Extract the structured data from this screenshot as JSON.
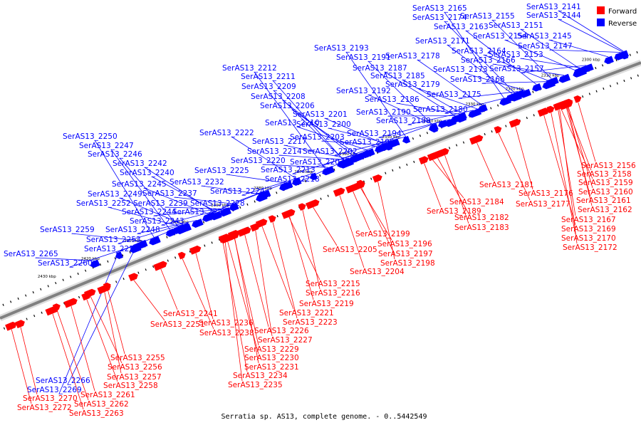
{
  "caption": "Serratia sp. AS13, complete genome. - 0..5442549",
  "legend": [
    {
      "label": "Forward",
      "color": "#ff0000"
    },
    {
      "label": "Reverse",
      "color": "#0000ff"
    }
  ],
  "colors": {
    "forward": "#ff0000",
    "reverse": "#0000ff",
    "backbone": "#808080"
  },
  "kbp_labels": [
    "2300 kbp",
    "2310 kbp",
    "2320 kbp",
    "2330 kbp",
    "2340 kbp",
    "2350 kbp",
    "2360 kbp",
    "2370 kbp",
    "2380 kbp",
    "2390 kbp",
    "2400 kbp",
    "2410 kbp",
    "2420 kbp",
    "2430 kbp"
  ],
  "reverse_genes": [
    "SerAS13_2165",
    "SerAS13_2141",
    "SerAS13_2174",
    "SerAS13_2155",
    "SerAS13_2144",
    "SerAS13_2163",
    "SerAS13_2151",
    "SerAS13_2171",
    "SerAS13_2154",
    "SerAS13_2145",
    "SerAS13_2164",
    "SerAS13_2147",
    "SerAS13_2193",
    "SerAS13_2178",
    "SerAS13_2166",
    "SerAS13_2153",
    "SerAS13_2191",
    "SerAS13_2187",
    "SerAS13_2173",
    "SerAS13_2157",
    "SerAS13_2212",
    "SerAS13_2185",
    "SerAS13_2168",
    "SerAS13_2211",
    "SerAS13_2179",
    "SerAS13_2192",
    "SerAS13_2209",
    "SerAS13_2175",
    "SerAS13_2186",
    "SerAS13_2208",
    "SerAS13_2180",
    "SerAS13_2206",
    "SerAS13_2190",
    "SerAS13_2201",
    "SerAS13_2188",
    "SerAS13_2210",
    "SerAS13_2200",
    "SerAS13_2222",
    "SerAS13_2194",
    "SerAS13_2203",
    "SerAS13_2217",
    "SerAS13_2195",
    "SerAS13_2250",
    "SerAS13_2214",
    "SerAS13_2202",
    "SerAS13_2247",
    "SerAS13_2220",
    "SerAS13_2207",
    "SerAS13_2246",
    "SerAS13_2213",
    "SerAS13_2242",
    "SerAS13_2225",
    "SerAS13_2240",
    "SerAS13_2218",
    "SerAS13_2232",
    "SerAS13_2245",
    "SerAS13_2224",
    "SerAS13_2237",
    "SerAS13_2249",
    "SerAS13_2252",
    "SerAS13_2239",
    "SerAS13_2228",
    "SerAS13_2244",
    "SerAS13_2233",
    "SerAS13_2243",
    "SerAS13_2259",
    "SerAS13_2248",
    "SerAS13_2253",
    "SerAS13_2254",
    "SerAS13_2265",
    "SerAS13_2260",
    "SerAS13_2266",
    "SerAS13_2269"
  ],
  "forward_genes": [
    "SerAS13_2156",
    "SerAS13_2158",
    "SerAS13_2159",
    "SerAS13_2181",
    "SerAS13_2160",
    "SerAS13_2184",
    "SerAS13_2176",
    "SerAS13_2161",
    "SerAS13_2177",
    "SerAS13_2189",
    "SerAS13_2162",
    "SerAS13_2182",
    "SerAS13_2167",
    "SerAS13_2183",
    "SerAS13_2169",
    "SerAS13_2199",
    "SerAS13_2170",
    "SerAS13_2196",
    "SerAS13_2172",
    "SerAS13_2205",
    "SerAS13_2197",
    "SerAS13_2198",
    "SerAS13_2204",
    "SerAS13_2215",
    "SerAS13_2216",
    "SerAS13_2219",
    "SerAS13_2221",
    "SerAS13_2241",
    "SerAS13_2223",
    "SerAS13_2251",
    "SerAS13_2236",
    "SerAS13_2226",
    "SerAS13_2238",
    "SerAS13_2227",
    "SerAS13_2229",
    "SerAS13_2230",
    "SerAS13_2255",
    "SerAS13_2231",
    "SerAS13_2256",
    "SerAS13_2257",
    "SerAS13_2234",
    "SerAS13_2258",
    "SerAS13_2235",
    "SerAS13_2261",
    "SerAS13_2262",
    "SerAS13_2270",
    "SerAS13_2272",
    "SerAS13_2263"
  ]
}
